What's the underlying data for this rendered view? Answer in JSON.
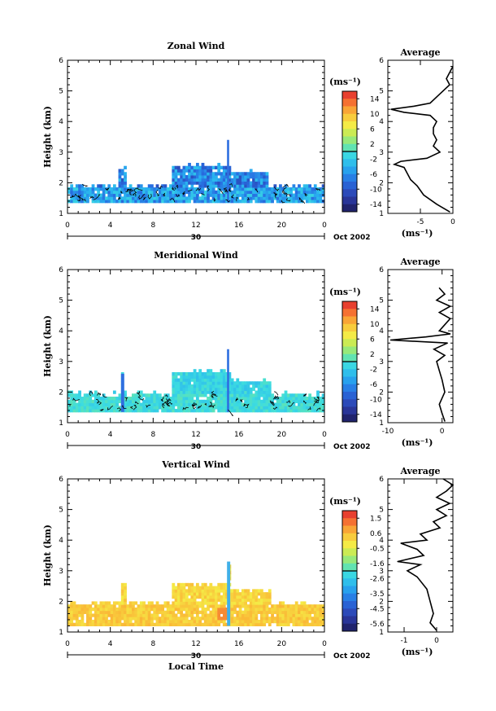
{
  "chart_data": [
    {
      "type": "heatmap",
      "title": "Zonal Wind",
      "ylabel": "Height (km)",
      "ylim": [
        1,
        6
      ],
      "yticks": [
        "1",
        "2",
        "3",
        "4",
        "5",
        "6"
      ],
      "xlim": [
        0,
        24
      ],
      "xticks": [
        "0",
        "4",
        "8",
        "12",
        "16",
        "20",
        "0"
      ],
      "day_label": "30",
      "date_label": "Oct 2002",
      "colorbar": {
        "unit": "(ms⁻¹)",
        "ticks": [
          "14",
          "10",
          "6",
          "2",
          "-2",
          "-6",
          "-10",
          "-14"
        ],
        "range": [
          -16,
          16
        ]
      },
      "field": {
        "base_top_km": [
          1.8,
          1.9
        ],
        "base_bottom_km": 1.35,
        "value_range": [
          -14,
          2
        ],
        "tall_features": [
          {
            "x_start": 4.8,
            "x_end": 5.4,
            "top_km": 2.5
          },
          {
            "x_start": 9.8,
            "x_end": 15.2,
            "top_km": 2.6
          },
          {
            "x_start": 14.9,
            "x_end": 15.1,
            "top_km": 3.4
          },
          {
            "x_start": 15.2,
            "x_end": 18.8,
            "top_km": 2.4
          }
        ]
      },
      "average_profile": {
        "title": "Average",
        "xlabel": "(ms⁻¹)",
        "xlim": [
          -10,
          0
        ],
        "xticks": [
          "-5",
          "0"
        ],
        "ylim": [
          1,
          6
        ],
        "yticks": [
          "1",
          "2",
          "3",
          "4",
          "5",
          "6"
        ],
        "height_km": [
          1.05,
          1.3,
          1.6,
          1.9,
          2.1,
          2.3,
          2.5,
          2.6,
          2.7,
          2.8,
          3.0,
          3.2,
          3.4,
          3.6,
          3.8,
          4.0,
          4.2,
          4.3,
          4.4,
          4.5,
          4.6,
          4.8,
          5.0,
          5.2,
          5.4,
          5.6,
          5.8
        ],
        "wind_ms": [
          -0.5,
          -2.5,
          -4.5,
          -5.5,
          -6.5,
          -7.0,
          -7.5,
          -9.0,
          -8.0,
          -4.0,
          -2.0,
          -3.0,
          -2.5,
          -3.0,
          -3.0,
          -2.5,
          -3.5,
          -7.5,
          -9.5,
          -6.0,
          -3.5,
          -2.5,
          -1.5,
          -0.5,
          -1.0,
          -0.5,
          0.0
        ]
      }
    },
    {
      "type": "heatmap",
      "title": "Meridional Wind",
      "ylabel": "Height (km)",
      "ylim": [
        1,
        6
      ],
      "yticks": [
        "1",
        "2",
        "3",
        "4",
        "5",
        "6"
      ],
      "xlim": [
        0,
        24
      ],
      "xticks": [
        "0",
        "4",
        "8",
        "12",
        "16",
        "20",
        "0"
      ],
      "day_label": "30",
      "date_label": "Oct 2002",
      "colorbar": {
        "unit": "(ms⁻¹)",
        "ticks": [
          "14",
          "10",
          "6",
          "2",
          "-2",
          "-6",
          "-10",
          "-14"
        ],
        "range": [
          -16,
          16
        ]
      },
      "field": {
        "base_top_km": [
          1.8,
          2.0
        ],
        "base_bottom_km": 1.35,
        "value_range": [
          -4,
          2
        ],
        "tall_features": [
          {
            "x_start": 5.0,
            "x_end": 5.3,
            "top_km": 2.6
          },
          {
            "x_start": 9.8,
            "x_end": 15.2,
            "top_km": 2.7
          },
          {
            "x_start": 14.9,
            "x_end": 15.1,
            "top_km": 3.4
          },
          {
            "x_start": 15.2,
            "x_end": 19.0,
            "top_km": 2.4
          }
        ]
      },
      "average_profile": {
        "title": "Average",
        "xlabel": "(ms⁻¹)",
        "xlim": [
          -10,
          2
        ],
        "xticks": [
          "-10",
          "0"
        ],
        "ylim": [
          1,
          6
        ],
        "yticks": [
          "1",
          "2",
          "3",
          "4",
          "5",
          "6"
        ],
        "height_km": [
          1.05,
          1.3,
          1.6,
          2.0,
          2.4,
          2.7,
          3.0,
          3.2,
          3.4,
          3.6,
          3.7,
          3.8,
          3.9,
          4.0,
          4.2,
          4.4,
          4.6,
          4.8,
          5.0,
          5.2,
          5.4
        ],
        "wind_ms": [
          0.5,
          0.0,
          -0.5,
          0.5,
          0.0,
          -0.5,
          -1.0,
          0.5,
          -1.5,
          1.0,
          -9.5,
          -3.0,
          1.5,
          -0.5,
          0.5,
          1.5,
          -0.5,
          1.5,
          -1.0,
          0.5,
          -0.5
        ]
      }
    },
    {
      "type": "heatmap",
      "title": "Vertical Wind",
      "ylabel": "Height (km)",
      "xlabel": "Local Time",
      "ylim": [
        1,
        6
      ],
      "yticks": [
        "1",
        "2",
        "3",
        "4",
        "5",
        "6"
      ],
      "xlim": [
        0,
        24
      ],
      "xticks": [
        "0",
        "4",
        "8",
        "12",
        "16",
        "20",
        "0"
      ],
      "day_label": "30",
      "date_label": "Oct 2002",
      "colorbar": {
        "unit": "(ms⁻¹)",
        "ticks": [
          "1.5",
          "0.6",
          "-0.5",
          "-1.6",
          "-2.6",
          "-3.5",
          "-4.5",
          "-5.6"
        ],
        "range": [
          -6,
          2
        ]
      },
      "field": {
        "base_top_km": [
          1.8,
          2.0
        ],
        "base_bottom_km": 1.2,
        "value_range": [
          -0.6,
          0.9
        ],
        "tall_features": [
          {
            "x_start": 5.0,
            "x_end": 5.4,
            "top_km": 2.6
          },
          {
            "x_start": 9.8,
            "x_end": 15.2,
            "top_km": 2.6
          },
          {
            "x_start": 14.9,
            "x_end": 15.2,
            "top_km": 3.3
          },
          {
            "x_start": 15.2,
            "x_end": 19.0,
            "top_km": 2.4
          }
        ]
      },
      "average_profile": {
        "title": "Average",
        "xlabel": "(ms⁻¹)",
        "xlim": [
          -1.5,
          0.5
        ],
        "xticks": [
          "-1",
          "0"
        ],
        "ylim": [
          1,
          6
        ],
        "yticks": [
          "1",
          "2",
          "3",
          "4",
          "5",
          "6"
        ],
        "height_km": [
          1.05,
          1.3,
          1.6,
          2.0,
          2.4,
          2.8,
          3.0,
          3.2,
          3.3,
          3.5,
          3.7,
          3.9,
          4.0,
          4.2,
          4.4,
          4.6,
          4.8,
          5.0,
          5.2,
          5.4,
          5.6,
          5.8,
          6.0
        ],
        "wind_ms": [
          0.0,
          -0.2,
          -0.1,
          -0.2,
          -0.3,
          -0.6,
          -0.9,
          -0.5,
          -1.2,
          -0.4,
          -0.6,
          -1.1,
          -0.3,
          -0.5,
          0.1,
          -0.1,
          0.3,
          0.0,
          0.4,
          0.0,
          0.3,
          0.5,
          0.2
        ]
      }
    }
  ]
}
